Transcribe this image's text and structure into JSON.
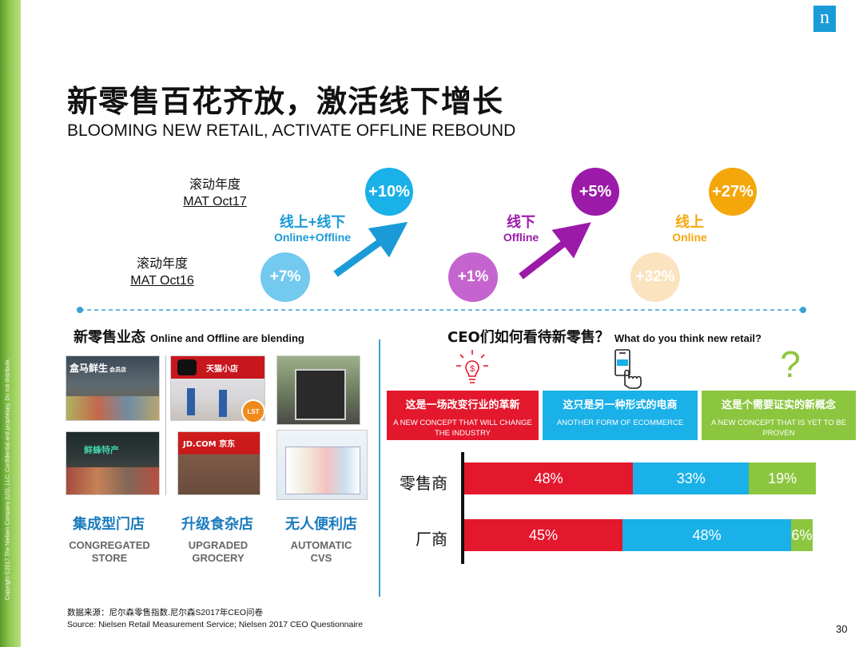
{
  "brand": {
    "logo": "n",
    "copyright": "Copyright ©2017 The Nielsen Company (US), LLC. Confidential and proprietary. Do not distribute."
  },
  "title": {
    "zh": "新零售百花齐放，激活线下增长",
    "en": "BLOOMING NEW RETAIL, ACTIVATE OFFLINE REBOUND"
  },
  "growth": {
    "mat17": {
      "zh": "滚动年度",
      "en": "MAT Oct17"
    },
    "mat16": {
      "zh": "滚动年度",
      "en": "MAT Oct16"
    },
    "groups": [
      {
        "zh": "线上+线下",
        "en": "Online+Offline",
        "color": "#1ab0e8",
        "oct17": "+10%",
        "oct16": "+7%",
        "light": "#74c9ef"
      },
      {
        "zh": "线下",
        "en": "Offline",
        "color": "#9b1aa8",
        "oct17": "+5%",
        "oct16": "+1%",
        "light": "#c564cf"
      },
      {
        "zh": "线上",
        "en": "Online",
        "color": "#f3a70a",
        "oct17": "+27%",
        "oct16": "+32%",
        "light": "#fbe3c0"
      }
    ]
  },
  "formats": {
    "title_zh": "新零售业态",
    "title_en": "Online and Offline are blending",
    "items": [
      {
        "zh": "集成型门店",
        "en1": "CONGREGATED",
        "en2": "STORE"
      },
      {
        "zh": "升级食杂店",
        "en1": "UPGRADED",
        "en2": "GROCERY"
      },
      {
        "zh": "无人便利店",
        "en1": "AUTOMATIC",
        "en2": "CVS"
      }
    ],
    "photo_signs": {
      "hema": "盒马鲜生",
      "hema_sub": "会员店",
      "tmall": "天猫小店",
      "lst": "LST",
      "store4": "鲜蜂特产",
      "jd": "JD.COM 京东"
    }
  },
  "ceo": {
    "title_zh": "CEO们如何看待新零售？",
    "title_en": "What do you think new retail?",
    "options": [
      {
        "zh": "这是一场改变行业的革新",
        "en": "A NEW CONCEPT THAT WILL CHANGE THE INDUSTRY",
        "color": "#e3182d",
        "icon": "lightbulb-dollar-icon"
      },
      {
        "zh": "这只是另一种形式的电商",
        "en": "ANOTHER FORM OF ECOMMERCE",
        "color": "#1ab0e8",
        "icon": "phone-tap-icon"
      },
      {
        "zh": "这是个需要证实的新概念",
        "en": "A NEW CONCEPT THAT IS YET TO BE PROVEN",
        "color": "#8cc63f",
        "icon": "question-mark-icon"
      }
    ],
    "glyph_question": "?",
    "glyph_dollar": "$"
  },
  "chart_data": {
    "type": "bar",
    "orientation": "horizontal",
    "stacked": true,
    "categories": [
      "零售商",
      "厂商"
    ],
    "series": [
      {
        "values": [
          48,
          45
        ],
        "labels": [
          "48%",
          "45%"
        ],
        "color": "#e3182d"
      },
      {
        "values": [
          33,
          48
        ],
        "labels": [
          "33%",
          "48%"
        ],
        "color": "#1ab0e8"
      },
      {
        "values": [
          19,
          6
        ],
        "labels": [
          "19%",
          "6%"
        ],
        "color": "#8cc63f"
      }
    ]
  },
  "footer": {
    "source_zh": "数据来源：尼尔森零售指数.尼尔森S2017年CEO问卷",
    "source_en": "Source: Nielsen Retail Measurement Service; Nielsen 2017 CEO Questionnaire",
    "page": "30"
  }
}
